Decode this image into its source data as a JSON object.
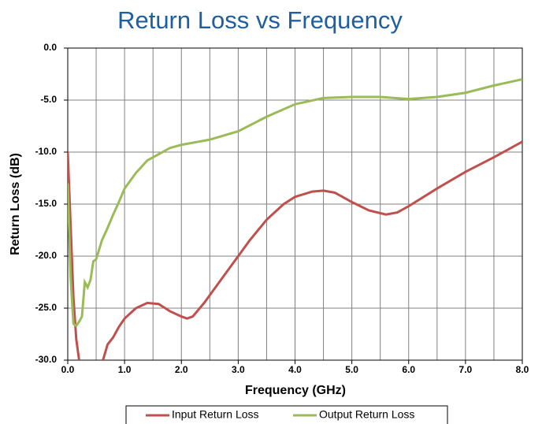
{
  "chart_data": {
    "type": "line",
    "title": "Return Loss vs Frequency",
    "x_label": "Frequency (GHz)",
    "y_label": "Return Loss (dB)",
    "xlim": [
      0,
      8
    ],
    "ylim": [
      -30,
      0
    ],
    "xticks": [
      {
        "value": 0,
        "label": "0.0"
      },
      {
        "value": 1,
        "label": "1.0"
      },
      {
        "value": 2,
        "label": "2.0"
      },
      {
        "value": 3,
        "label": "3.0"
      },
      {
        "value": 4,
        "label": "4.0"
      },
      {
        "value": 5,
        "label": "5.0"
      },
      {
        "value": 6,
        "label": "6.0"
      },
      {
        "value": 7,
        "label": "7.0"
      },
      {
        "value": 8,
        "label": "8.0"
      }
    ],
    "x_minor_ticks": [
      0.5,
      1.5,
      2.5,
      3.5,
      4.5,
      5.5,
      6.5,
      7.5
    ],
    "yticks": [
      {
        "value": 0,
        "label": "0.0"
      },
      {
        "value": -5,
        "label": "-5.0"
      },
      {
        "value": -10,
        "label": "-10.0"
      },
      {
        "value": -15,
        "label": "-15.0"
      },
      {
        "value": -20,
        "label": "-20.0"
      },
      {
        "value": -25,
        "label": "-25.0"
      },
      {
        "value": -30,
        "label": "-30.0"
      }
    ],
    "grid": true,
    "legend": "bottom",
    "series": [
      {
        "name": "Input Return Loss",
        "color": "#c0504d",
        "x": [
          0,
          0.05,
          0.1,
          0.15,
          0.2,
          0.4,
          0.62,
          0.7,
          0.8,
          0.9,
          1.0,
          1.2,
          1.4,
          1.6,
          1.8,
          2.0,
          2.1,
          2.2,
          2.4,
          2.6,
          2.8,
          3.0,
          3.2,
          3.5,
          3.8,
          4.0,
          4.3,
          4.5,
          4.7,
          5.0,
          5.3,
          5.6,
          5.8,
          6.0,
          6.5,
          7.0,
          7.5,
          8.0
        ],
        "values": [
          -10,
          -17,
          -24,
          -28,
          -30,
          null,
          -30,
          -28.5,
          -27.8,
          -26.8,
          -26,
          -25,
          -24.5,
          -24.6,
          -25.3,
          -25.8,
          -26,
          -25.8,
          -24.5,
          -23,
          -21.5,
          -20,
          -18.5,
          -16.5,
          -15,
          -14.3,
          -13.8,
          -13.7,
          -13.9,
          -14.8,
          -15.6,
          -16,
          -15.8,
          -15.2,
          -13.5,
          -11.9,
          -10.5,
          -9
        ]
      },
      {
        "name": "Output Return Loss",
        "color": "#9bbb59",
        "x": [
          0,
          0.05,
          0.1,
          0.15,
          0.2,
          0.25,
          0.3,
          0.35,
          0.4,
          0.45,
          0.5,
          0.6,
          0.7,
          0.8,
          0.9,
          1.0,
          1.2,
          1.4,
          1.6,
          1.8,
          2.0,
          2.5,
          3.0,
          3.5,
          4.0,
          4.5,
          5.0,
          5.5,
          6.0,
          6.5,
          7.0,
          7.5,
          8.0
        ],
        "values": [
          -13,
          -22,
          -26.5,
          -26.7,
          -26.3,
          -25.8,
          -22.5,
          -23,
          -22.3,
          -20.5,
          -20.3,
          -18.5,
          -17.3,
          -16,
          -14.8,
          -13.5,
          -12,
          -10.8,
          -10.2,
          -9.6,
          -9.3,
          -8.8,
          -8,
          -6.6,
          -5.4,
          -4.8,
          -4.7,
          -4.7,
          -4.9,
          -4.7,
          -4.3,
          -3.6,
          -3
        ]
      }
    ]
  }
}
